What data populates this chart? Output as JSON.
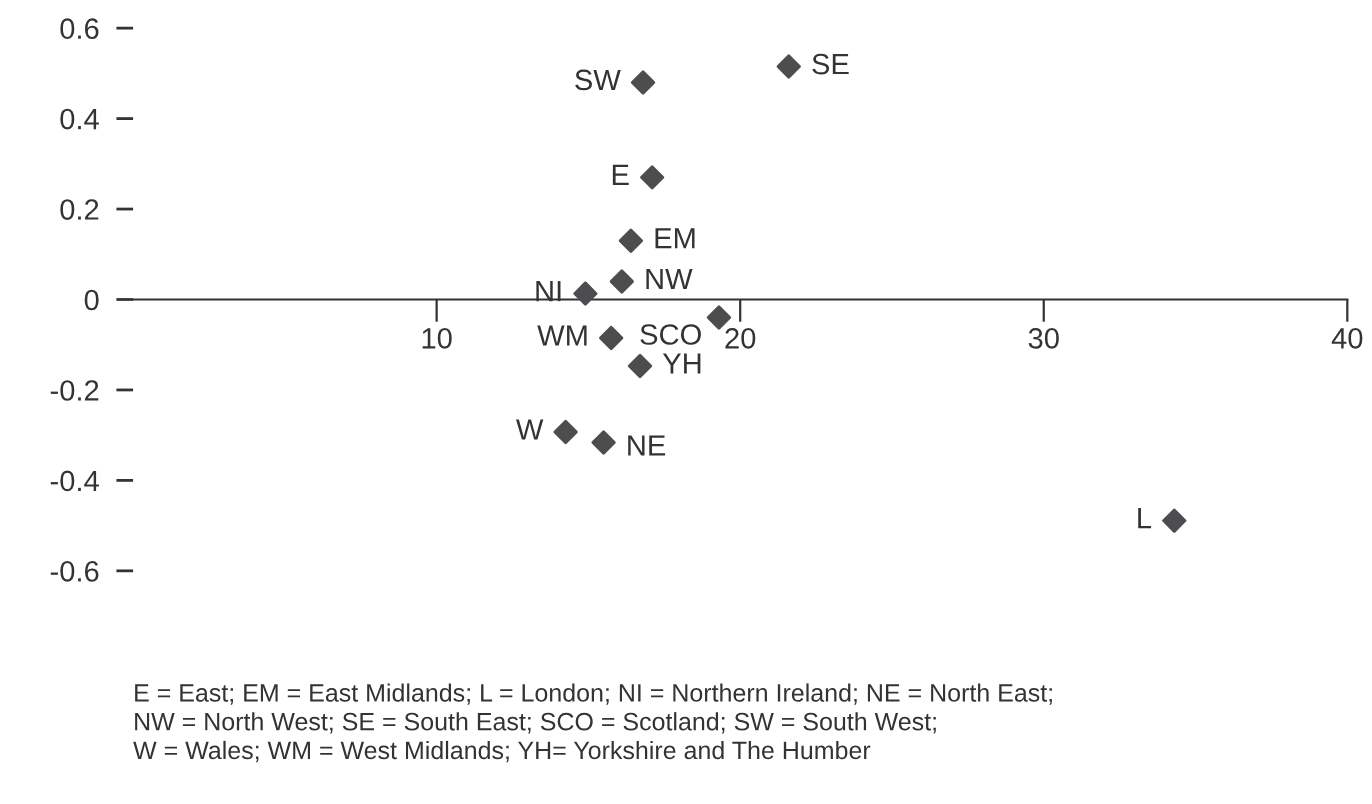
{
  "chart_data": {
    "type": "scatter",
    "x": [
      16.8,
      21.6,
      17.1,
      16.4,
      16.1,
      14.9,
      19.3,
      15.75,
      16.7,
      14.25,
      15.5,
      34.3
    ],
    "series": [
      {
        "color": "#4d4d4f",
        "values": [
          0.48,
          0.515,
          0.27,
          0.13,
          0.04,
          0.013,
          -0.04,
          -0.085,
          -0.147,
          -0.293,
          -0.316,
          -0.489
        ]
      }
    ],
    "marker": "diamond",
    "xlim": [
      0,
      40
    ],
    "xticks": [
      10,
      20,
      30,
      40
    ],
    "ylim": [
      -0.6,
      0.6
    ],
    "yticks": [
      0.6,
      0.4,
      0.2,
      0,
      -0.2,
      -0.4,
      -0.6
    ],
    "grid": false,
    "legend": false,
    "annotations": [
      {
        "text": "SW",
        "x": 16.8,
        "y": 0.48
      },
      {
        "text": "SE",
        "x": 21.6,
        "y": 0.515
      },
      {
        "text": "E",
        "x": 17.1,
        "y": 0.27
      },
      {
        "text": "EM",
        "x": 16.4,
        "y": 0.13
      },
      {
        "text": "NW",
        "x": 16.1,
        "y": 0.04
      },
      {
        "text": "NI",
        "x": 14.9,
        "y": 0.013
      },
      {
        "text": "SCO",
        "x": 19.3,
        "y": -0.04
      },
      {
        "text": "WM",
        "x": 15.75,
        "y": -0.085
      },
      {
        "text": "YH",
        "x": 16.7,
        "y": -0.147
      },
      {
        "text": "W",
        "x": 14.25,
        "y": -0.293
      },
      {
        "text": "NE",
        "x": 15.5,
        "y": -0.316
      },
      {
        "text": "L",
        "x": 34.3,
        "y": -0.489
      },
      "E = East; EM = East Midlands; L = London; NI = Northern Ireland; NE = North East;\nNW = North West; SE = South East; SCO = Scotland; SW = South West;\nW = Wales; WM = West Midlands; YH= Yorkshire and The Humber"
    ]
  }
}
